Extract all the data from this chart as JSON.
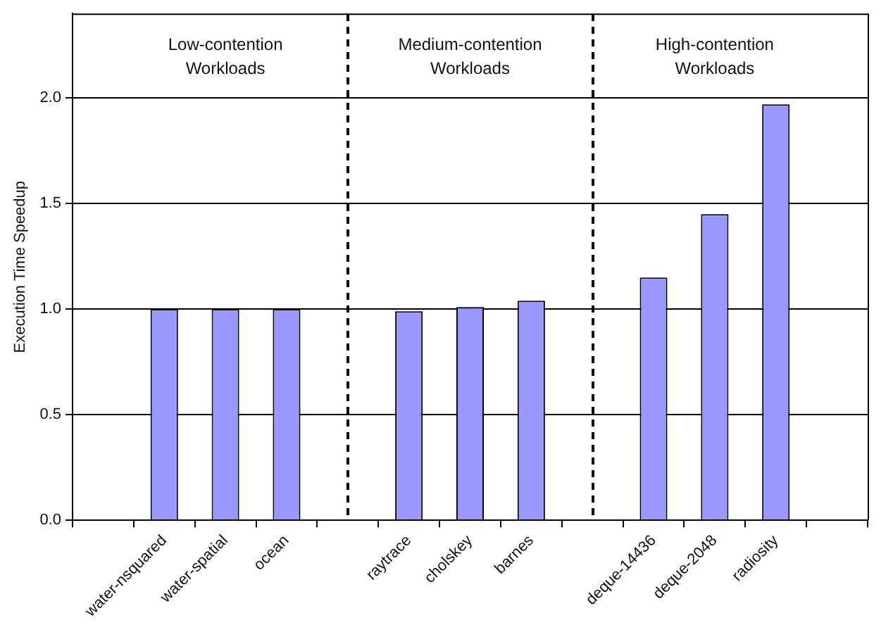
{
  "chart_data": {
    "type": "bar",
    "ylabel": "Execution Time Speedup",
    "categories": [
      null,
      "water-nsquared",
      "water-spatial",
      "ocean",
      null,
      "raytrace",
      "cholskey",
      "barnes",
      null,
      "deque-14436",
      "deque-2048",
      "radiosity",
      null
    ],
    "values": [
      null,
      1.0,
      1.0,
      1.0,
      null,
      0.99,
      1.01,
      1.04,
      null,
      1.15,
      1.45,
      1.97,
      null
    ],
    "color": "#9999ff",
    "ylim": [
      0,
      2.4
    ],
    "yticks": [
      {
        "value": 0,
        "label": "0.0"
      },
      {
        "value": 0.5,
        "label": "0.5"
      },
      {
        "value": 1,
        "label": "1.0"
      },
      {
        "value": 1.5,
        "label": "1.5"
      },
      {
        "value": 2,
        "label": "2.0"
      }
    ],
    "grid": "y",
    "annotations": [
      "Low-contention Workloads",
      "Medium-contention Workloads",
      "High-contention Workloads"
    ]
  }
}
